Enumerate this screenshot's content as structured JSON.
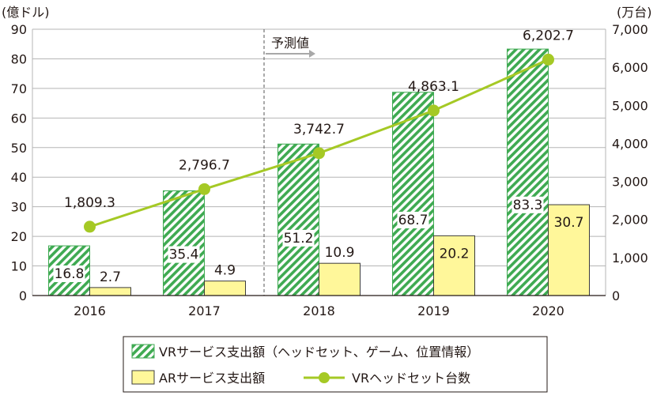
{
  "chart_data": {
    "type": "bar",
    "categories": [
      "2016",
      "2017",
      "2018",
      "2019",
      "2020"
    ],
    "left_axis": {
      "unit": "(億ドル)",
      "ylim": [
        0,
        90
      ],
      "ticks": [
        "0",
        "10",
        "20",
        "30",
        "40",
        "50",
        "60",
        "70",
        "80",
        "90"
      ]
    },
    "right_axis": {
      "unit": "(万台)",
      "ylim": [
        0,
        7000
      ],
      "ticks": [
        "0",
        "1,000",
        "2,000",
        "3,000",
        "4,000",
        "5,000",
        "6,000",
        "7,000"
      ]
    },
    "series": [
      {
        "name": "VRサービス支出額（ヘッドセット、ゲーム、位置情報）",
        "type": "bar",
        "axis": "left",
        "values": [
          16.8,
          35.4,
          51.2,
          68.7,
          83.3
        ],
        "labels": [
          "16.8",
          "35.4",
          "51.2",
          "68.7",
          "83.3"
        ]
      },
      {
        "name": "ARサービス支出額",
        "type": "bar",
        "axis": "left",
        "values": [
          2.7,
          4.9,
          10.9,
          20.2,
          30.7
        ],
        "labels": [
          "2.7",
          "4.9",
          "10.9",
          "20.2",
          "30.7"
        ]
      },
      {
        "name": "VRヘッドセット台数",
        "type": "line",
        "axis": "right",
        "values": [
          1809.3,
          2796.7,
          3742.7,
          4863.1,
          6202.7
        ],
        "labels": [
          "1,809.3",
          "2,796.7",
          "3,742.7",
          "4,863.1",
          "6,202.7"
        ]
      }
    ],
    "forecast_label": "予測値",
    "forecast_from": "2018",
    "grid": true,
    "legend_position": "bottom",
    "colors": {
      "vr_bar": "#3faa52",
      "vr_bar_fill": "#ffffff",
      "ar_bar": "#fff79a",
      "line": "#a5c925",
      "grid": "#b5b5b5",
      "arrow": "#a8a8a8"
    }
  }
}
